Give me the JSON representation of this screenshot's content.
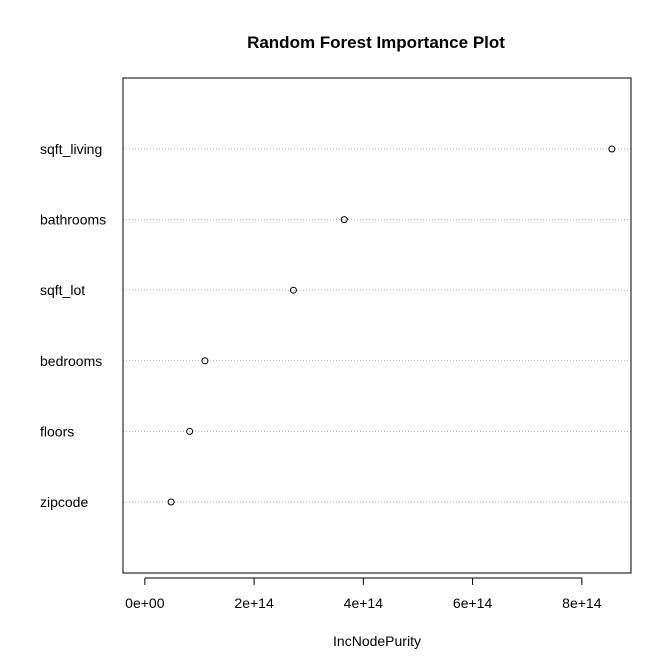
{
  "chart_data": {
    "type": "scatter",
    "title": "Random Forest Importance Plot",
    "xlabel": "IncNodePurity",
    "ylabel": "",
    "categories": [
      "sqft_living",
      "bathrooms",
      "sqft_lot",
      "bedrooms",
      "floors",
      "zipcode"
    ],
    "values": [
      855000000000000,
      365000000000000,
      272000000000000,
      110000000000000,
      82000000000000,
      48000000000000
    ],
    "xticks": [
      0,
      200000000000000,
      400000000000000,
      600000000000000,
      800000000000000
    ],
    "xtick_labels": [
      "0e+00",
      "2e+14",
      "4e+14",
      "6e+14",
      "8e+14"
    ],
    "xlim": [
      -40000000000000,
      890000000000000
    ],
    "grid": "horizontal dotted",
    "legend": "none"
  }
}
